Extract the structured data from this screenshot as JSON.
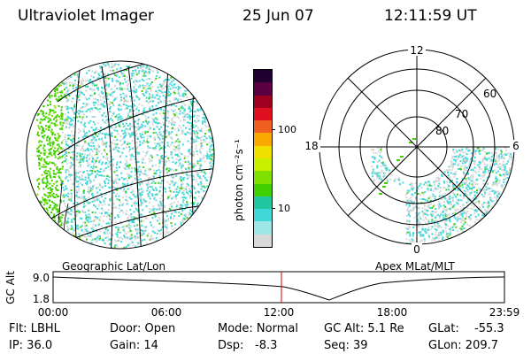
{
  "header": {
    "title": "Ultraviolet Imager",
    "date": "25 Jun 07",
    "time": "12:11:59 UT"
  },
  "colorbar": {
    "unit_label": "photon cm⁻²s⁻¹",
    "ticks": [
      "100",
      "10"
    ],
    "scale": "log",
    "colors_top_to_bottom": [
      "#200030",
      "#5a0040",
      "#a00020",
      "#e01020",
      "#f06020",
      "#f8a800",
      "#f0e000",
      "#c8f000",
      "#80e000",
      "#40d000",
      "#20c8a0",
      "#40d8d8",
      "#a0e8e8",
      "#d8d8d8"
    ]
  },
  "left_panel": {
    "label": "Geographic Lat/Lon"
  },
  "right_panel": {
    "label": "Apex MLat/MLT",
    "mlt_labels": [
      "12",
      "18",
      "6",
      "0"
    ],
    "mlat_labels": [
      "60",
      "70",
      "80"
    ]
  },
  "altitude_plot": {
    "ylabel": "GC Alt",
    "yticks": [
      "9.0",
      "1.8"
    ],
    "xticks": [
      "00:00",
      "06:00",
      "12:00",
      "18:00",
      "23:59"
    ],
    "current_time_marker": "12:11:59"
  },
  "footer": {
    "flt": "Flt: LBHL",
    "ip": "IP: 36.0",
    "door": "Door: Open",
    "gain": "Gain: 14",
    "mode": "Mode: Normal",
    "dsp": "Dsp:",
    "dsp_value": "-8.3",
    "gcalt": "GC Alt: 5.1 Re",
    "seq": "Seq: 39",
    "glat": "GLat:",
    "glat_value": "-55.3",
    "glon": "GLon: 209.7"
  },
  "colors": {
    "background": "#ffffff",
    "foreground": "#000000",
    "marker": "#cc0000",
    "low_emission": "#d8d8d8",
    "mid_emission": "#40d8d8",
    "high_emission": "#40d000"
  }
}
